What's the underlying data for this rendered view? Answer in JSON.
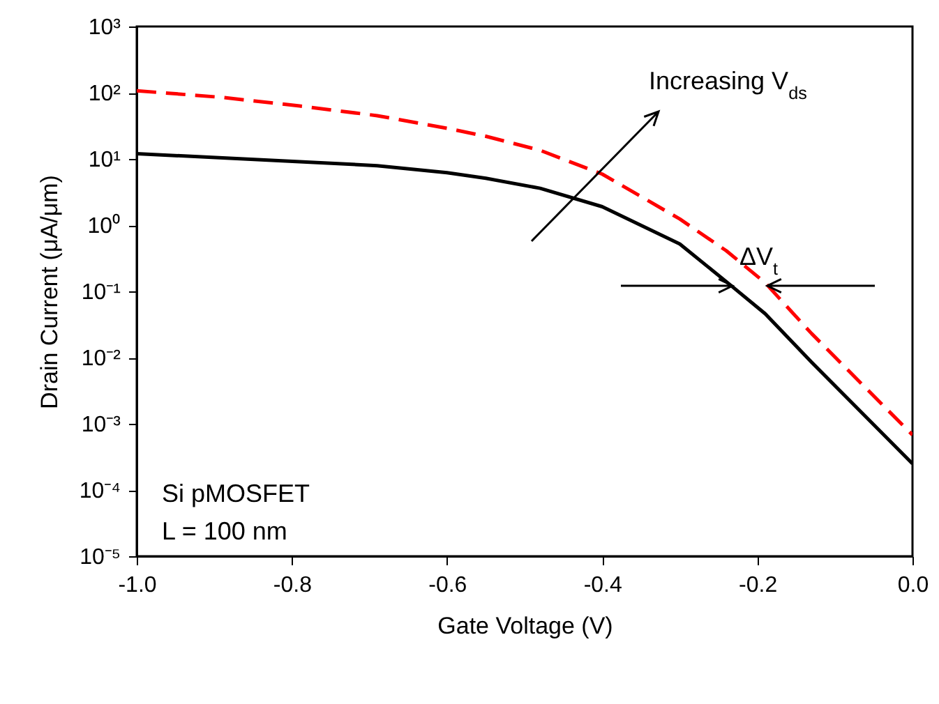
{
  "chart_data": {
    "type": "line",
    "xlabel": "Gate Voltage (V)",
    "ylabel": "Drain Current (μA/μm)",
    "log": "y",
    "grid": false,
    "marker": "none",
    "xlim": [
      -1.0,
      0.0
    ],
    "xticks": [
      {
        "value": -1.0,
        "label": "-1.0"
      },
      {
        "value": -0.8,
        "label": "-0.8"
      },
      {
        "value": -0.6,
        "label": "-0.6"
      },
      {
        "value": -0.4,
        "label": "-0.4"
      },
      {
        "value": -0.2,
        "label": "-0.2"
      },
      {
        "value": 0.0,
        "label": "0.0"
      }
    ],
    "ylim": [
      1e-05,
      1000
    ],
    "yticks": [
      {
        "value": 1000,
        "label": "10³"
      },
      {
        "value": 100,
        "label": "10²"
      },
      {
        "value": 10,
        "label": "10¹"
      },
      {
        "value": 1,
        "label": "10⁰"
      },
      {
        "value": 0.1,
        "label": "10⁻¹"
      },
      {
        "value": 0.01,
        "label": "10⁻²"
      },
      {
        "value": 0.001,
        "label": "10⁻³"
      },
      {
        "value": 0.0001,
        "label": "10⁻⁴"
      },
      {
        "value": 1e-05,
        "label": "10⁻⁵"
      }
    ],
    "series": [
      {
        "color": "#000000",
        "line_style": "solid",
        "x": [
          -1.0,
          -0.79,
          -0.69,
          -0.6,
          -0.55,
          -0.48,
          -0.4,
          -0.3,
          -0.24,
          -0.19,
          -0.13,
          0.0
        ],
        "values": [
          12,
          9.1,
          7.9,
          6.2,
          5.1,
          3.6,
          1.9,
          0.52,
          0.14,
          0.046,
          0.0085,
          0.00025
        ]
      },
      {
        "color": "#ff0000",
        "line_style": "dashed",
        "x": [
          -1.0,
          -0.89,
          -0.79,
          -0.69,
          -0.6,
          -0.55,
          -0.48,
          -0.4,
          -0.3,
          -0.24,
          -0.19,
          -0.13,
          0.0
        ],
        "values": [
          107,
          85,
          63,
          45,
          29,
          22,
          13.5,
          5.9,
          1.24,
          0.41,
          0.135,
          0.023,
          0.00068
        ]
      }
    ],
    "annotations": [
      "Increasing V$_{ds}$",
      "ΔV$_{t}$",
      "Si pMOSFET",
      "L = 100 nm"
    ]
  }
}
